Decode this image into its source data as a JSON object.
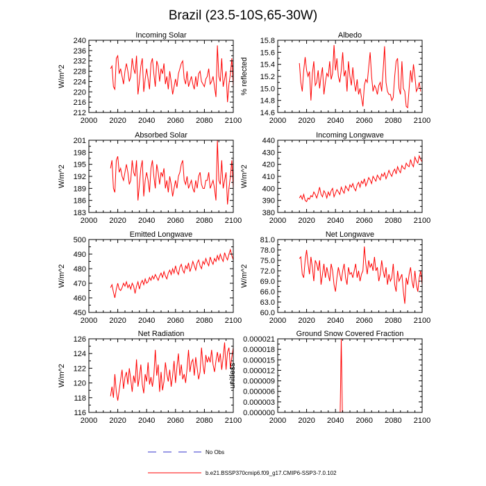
{
  "title": "Brazil (23.5-10S,65-30W)",
  "colors": {
    "series": "#ff0000",
    "obs": "#3333cc",
    "axis": "#000000"
  },
  "legend": {
    "obs_label": "No Obs",
    "model_label": "b.e21.BSSP370cmip6.f09_g17.CMIP6-SSP3-7.0.102"
  },
  "chart_data": [
    {
      "type": "line",
      "title": "Incoming Solar",
      "ylabel": "W/m^2",
      "xlim": [
        2000,
        2100
      ],
      "ylim": [
        212,
        240
      ],
      "xticks": [
        2000,
        2020,
        2040,
        2060,
        2080,
        2100
      ],
      "yticks": [
        "212",
        "216",
        "220",
        "224",
        "228",
        "232",
        "236",
        "240"
      ],
      "series": [
        {
          "name": "b.e21.BSSP370cmip6.f09_g17.CMIP6-SSP3-7.0.102",
          "x_start": 2015,
          "values": [
            229,
            230,
            222,
            221,
            233,
            234,
            227,
            229,
            226,
            223,
            228,
            231,
            228,
            224,
            226,
            233,
            229,
            227,
            234,
            219,
            224,
            230,
            233,
            220,
            225,
            229,
            225,
            221,
            231,
            233,
            227,
            222,
            232,
            230,
            224,
            229,
            227,
            231,
            223,
            226,
            221,
            228,
            224,
            219,
            222,
            225,
            222,
            227,
            229,
            231,
            232,
            225,
            223,
            228,
            222,
            224,
            226,
            223,
            221,
            226,
            222,
            227,
            228,
            224,
            223,
            222,
            225,
            226,
            229,
            223,
            224,
            226,
            222,
            218,
            238,
            226,
            224,
            233,
            222,
            225,
            228,
            216,
            223,
            227,
            233,
            222,
            219,
            226,
            236,
            224,
            221,
            218,
            222,
            233,
            226,
            222,
            220,
            225,
            223,
            222
          ]
        }
      ]
    },
    {
      "type": "line",
      "title": "Albedo",
      "ylabel": "% reflected",
      "xlim": [
        2000,
        2100
      ],
      "ylim": [
        14.6,
        15.8
      ],
      "xticks": [
        2000,
        2020,
        2040,
        2060,
        2080,
        2100
      ],
      "yticks": [
        "14.6",
        "14.8",
        "15.0",
        "15.2",
        "15.4",
        "15.6",
        "15.8"
      ],
      "series": [
        {
          "name": "b.e21.BSSP370cmip6.f09_g17.CMIP6-SSP3-7.0.102",
          "x_start": 2015,
          "values": [
            15.42,
            15.1,
            14.95,
            15.3,
            15.52,
            15.3,
            15.2,
            15.28,
            14.8,
            15.25,
            15.45,
            15.05,
            15.1,
            15.3,
            15.0,
            15.2,
            15.35,
            14.9,
            15.1,
            15.25,
            15.2,
            15.45,
            15.15,
            15.25,
            15.72,
            15.3,
            15.5,
            15.2,
            15.1,
            15.3,
            15.6,
            15.2,
            15.3,
            14.95,
            15.45,
            15.2,
            15.05,
            15.35,
            15.1,
            14.95,
            15.15,
            14.9,
            15.0,
            14.85,
            14.7,
            15.05,
            15.15,
            15.1,
            15.35,
            15.6,
            15.2,
            14.95,
            15.05,
            15.0,
            14.9,
            15.05,
            15.1,
            14.95,
            15.3,
            15.7,
            15.1,
            14.95,
            14.9,
            14.9,
            14.8,
            14.85,
            15.2,
            15.45,
            15.5,
            15.0,
            14.9,
            15.45,
            15.0,
            14.95,
            14.7,
            14.68,
            15.0,
            15.3,
            15.1,
            15.4,
            15.2,
            14.95,
            15.0,
            15.1,
            14.95
          ]
        }
      ]
    },
    {
      "type": "line",
      "title": "Absorbed Solar",
      "ylabel": "W/m^2",
      "xlim": [
        2000,
        2100
      ],
      "ylim": [
        183,
        201
      ],
      "xticks": [
        2000,
        2020,
        2040,
        2060,
        2080,
        2100
      ],
      "yticks": [
        "183",
        "186",
        "189",
        "192",
        "195",
        "198",
        "201"
      ],
      "series": [
        {
          "name": "b.e21.BSSP370cmip6.f09_g17.CMIP6-SSP3-7.0.102",
          "x_start": 2015,
          "values": [
            194,
            196,
            189,
            188,
            196,
            197,
            193,
            194,
            192,
            191,
            193,
            195,
            193,
            190,
            191,
            196,
            193,
            192,
            196,
            186,
            190,
            194,
            196,
            187,
            191,
            193,
            191,
            188,
            194,
            196,
            192,
            189,
            195,
            193,
            190,
            193,
            192,
            194,
            189,
            191,
            188,
            192,
            190,
            187,
            189,
            191,
            189,
            192,
            193,
            195,
            196,
            191,
            190,
            192,
            189,
            190,
            191,
            189,
            188,
            191,
            189,
            192,
            193,
            190,
            189,
            189,
            191,
            191,
            193,
            189,
            190,
            191,
            189,
            186,
            201,
            191,
            190,
            196,
            189,
            191,
            193,
            185,
            189,
            192,
            196,
            189,
            187,
            191,
            199,
            190,
            188,
            186,
            189,
            196,
            191,
            189,
            188,
            190,
            189,
            189
          ]
        }
      ]
    },
    {
      "type": "line",
      "title": "Incoming Longwave",
      "ylabel": "W/m^2",
      "xlim": [
        2000,
        2100
      ],
      "ylim": [
        380,
        440
      ],
      "xticks": [
        2000,
        2020,
        2040,
        2060,
        2080,
        2100
      ],
      "yticks": [
        "380",
        "390",
        "400",
        "410",
        "420",
        "430",
        "440"
      ],
      "series": [
        {
          "name": "b.e21.BSSP370cmip6.f09_g17.CMIP6-SSP3-7.0.102",
          "x_start": 2015,
          "values": [
            392,
            394,
            391,
            395,
            390,
            389,
            392,
            391,
            394,
            393,
            397,
            395,
            392,
            396,
            401,
            395,
            393,
            398,
            396,
            392,
            397,
            394,
            398,
            400,
            393,
            396,
            399,
            397,
            395,
            401,
            398,
            396,
            402,
            400,
            398,
            403,
            401,
            404,
            400,
            398,
            403,
            405,
            401,
            406,
            404,
            408,
            402,
            405,
            409,
            407,
            404,
            410,
            408,
            406,
            411,
            409,
            407,
            412,
            410,
            413,
            408,
            411,
            415,
            412,
            410,
            414,
            416,
            412,
            418,
            415,
            413,
            419,
            417,
            416,
            421,
            419,
            418,
            424,
            420,
            418,
            426,
            423,
            421,
            427,
            424,
            422,
            428,
            425,
            430,
            427,
            433,
            431,
            429,
            432
          ]
        }
      ]
    },
    {
      "type": "line",
      "title": "Emitted Longwave",
      "ylabel": "W/m^2",
      "xlim": [
        2000,
        2100
      ],
      "ylim": [
        450,
        500
      ],
      "xticks": [
        2000,
        2020,
        2040,
        2060,
        2080,
        2100
      ],
      "yticks": [
        "450",
        "460",
        "470",
        "480",
        "490",
        "500"
      ],
      "series": [
        {
          "name": "b.e21.BSSP370cmip6.f09_g17.CMIP6-SSP3-7.0.102",
          "x_start": 2015,
          "values": [
            467,
            469,
            464,
            460,
            466,
            470,
            466,
            465,
            467,
            470,
            468,
            471,
            467,
            469,
            466,
            470,
            468,
            463,
            468,
            471,
            466,
            470,
            472,
            469,
            473,
            470,
            471,
            474,
            472,
            475,
            473,
            476,
            474,
            472,
            475,
            477,
            474,
            478,
            475,
            473,
            477,
            479,
            476,
            480,
            477,
            482,
            478,
            476,
            481,
            483,
            479,
            477,
            482,
            480,
            484,
            478,
            481,
            485,
            482,
            479,
            484,
            486,
            482,
            480,
            485,
            483,
            487,
            484,
            482,
            488,
            485,
            483,
            487,
            485,
            489,
            486,
            490,
            487,
            485,
            491,
            488,
            486,
            490,
            493,
            489,
            486,
            491,
            494,
            488,
            492,
            497,
            490,
            495,
            493,
            497
          ]
        }
      ]
    },
    {
      "type": "line",
      "title": "Net Longwave",
      "ylabel": "W/m^2",
      "xlim": [
        2000,
        2100
      ],
      "ylim": [
        60.0,
        81.0
      ],
      "xticks": [
        2000,
        2020,
        2040,
        2060,
        2080,
        2100
      ],
      "yticks": [
        "60.0",
        "63.0",
        "66.0",
        "69.0",
        "72.0",
        "75.0",
        "78.0",
        "81.0"
      ],
      "series": [
        {
          "name": "b.e21.BSSP370cmip6.f09_g17.CMIP6-SSP3-7.0.102",
          "x_start": 2015,
          "values": [
            75.5,
            76,
            71,
            70,
            75,
            78,
            74,
            71,
            76,
            73,
            69,
            75,
            74,
            72,
            75,
            68,
            71,
            74,
            70,
            73,
            71,
            69,
            74,
            72,
            68,
            66,
            70,
            73,
            71,
            69,
            72,
            74,
            70,
            68,
            73,
            71,
            71.5,
            70,
            72,
            74,
            70,
            72,
            69,
            71,
            72,
            79,
            74,
            71,
            75,
            73,
            74,
            72,
            76,
            72,
            73,
            69,
            71,
            75,
            72,
            70,
            73,
            68,
            71,
            69,
            70,
            74,
            68,
            66,
            72,
            69,
            70,
            71,
            66,
            62.5,
            70,
            68,
            71,
            73,
            69,
            67,
            72,
            68,
            66,
            70,
            72,
            68,
            70,
            64,
            67,
            71,
            69,
            66,
            64,
            68,
            70,
            66,
            61,
            64,
            73,
            70,
            62,
            61,
            68,
            70,
            66,
            63,
            71,
            66,
            69,
            64,
            67,
            73,
            65,
            63,
            66,
            64
          ]
        }
      ]
    },
    {
      "type": "line",
      "title": "Net Radiation",
      "ylabel": "W/m^2",
      "xlim": [
        2000,
        2100
      ],
      "ylim": [
        116,
        126
      ],
      "xticks": [
        2000,
        2020,
        2040,
        2060,
        2080,
        2100
      ],
      "yticks": [
        "116",
        "118",
        "120",
        "122",
        "124",
        "126"
      ],
      "series": [
        {
          "name": "b.e21.BSSP370cmip6.f09_g17.CMIP6-SSP3-7.0.102",
          "x_start": 2015,
          "values": [
            118.2,
            119.5,
            118.0,
            121.2,
            118.8,
            117.6,
            119.0,
            120.5,
            121.8,
            119.2,
            120.8,
            121.5,
            119.8,
            122.0,
            120.5,
            118.8,
            121.0,
            120.0,
            123.2,
            119.5,
            120.8,
            122.5,
            119.8,
            118.6,
            121.2,
            120.2,
            122.8,
            119.8,
            120.8,
            119.5,
            121.0,
            124.5,
            121.0,
            122.5,
            118.8,
            121.5,
            119.0,
            120.2,
            122.8,
            121.2,
            120.2,
            121.8,
            119.5,
            121.0,
            123.0,
            120.0,
            122.2,
            124.0,
            121.0,
            122.5,
            120.5,
            121.2,
            120.0,
            122.0,
            124.5,
            121.5,
            122.8,
            123.2,
            121.0,
            123.5,
            122.0,
            120.5,
            121.5,
            124.8,
            122.5,
            121.2,
            123.8,
            122.8,
            123.5,
            122.8,
            124.5,
            122.5,
            121.5,
            123.0,
            124.2,
            122.8,
            124.0,
            121.8,
            123.5,
            125.5,
            121.8,
            124.2,
            124.8,
            122.0,
            123.5,
            124.8,
            123.0,
            124.5,
            122.8,
            125.8,
            123.5,
            122.0,
            124.0,
            125.2,
            124.5
          ]
        }
      ]
    },
    {
      "type": "line",
      "title": "Ground Snow Covered Fraction",
      "ylabel": "unitless",
      "xlim": [
        2000,
        2100
      ],
      "ylim": [
        0,
        2.1e-05
      ],
      "xticks": [
        2000,
        2020,
        2040,
        2060,
        2080,
        2100
      ],
      "yticks": [
        "0.000000",
        "0.000003",
        "0.000006",
        "0.000009",
        "0.000012",
        "0.000015",
        "0.000018",
        "0.000021"
      ],
      "series": [
        {
          "name": "b.e21.BSSP370cmip6.f09_g17.CMIP6-SSP3-7.0.102",
          "x": [
            2043.2,
            2044.0,
            2044.8
          ],
          "values": [
            -1e-06,
            2.1e-05,
            -1e-06
          ]
        }
      ]
    }
  ]
}
